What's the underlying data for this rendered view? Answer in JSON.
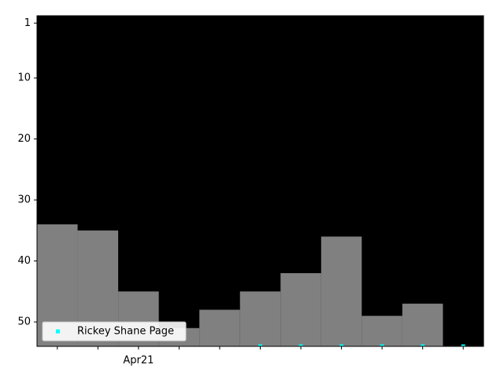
{
  "chart_data": {
    "type": "step",
    "categories": [
      null,
      null,
      "Apr21",
      null,
      null,
      null,
      null,
      null,
      null,
      null,
      null
    ],
    "series": [
      {
        "color": "#808080",
        "values": [
          34,
          35,
          45,
          51,
          48,
          45,
          42,
          36,
          49,
          47,
          null
        ]
      },
      {
        "name": "Rickey Shane Page",
        "color": "#00ffff",
        "values": [
          null,
          null,
          null,
          null,
          null,
          54,
          54,
          54,
          54,
          54,
          54
        ]
      }
    ],
    "ylim": [
      -0.2,
      54
    ],
    "y_inverted": true,
    "yticks": [
      1,
      10,
      20,
      30,
      40,
      50
    ],
    "background": "#000000",
    "legend": "lower left"
  }
}
